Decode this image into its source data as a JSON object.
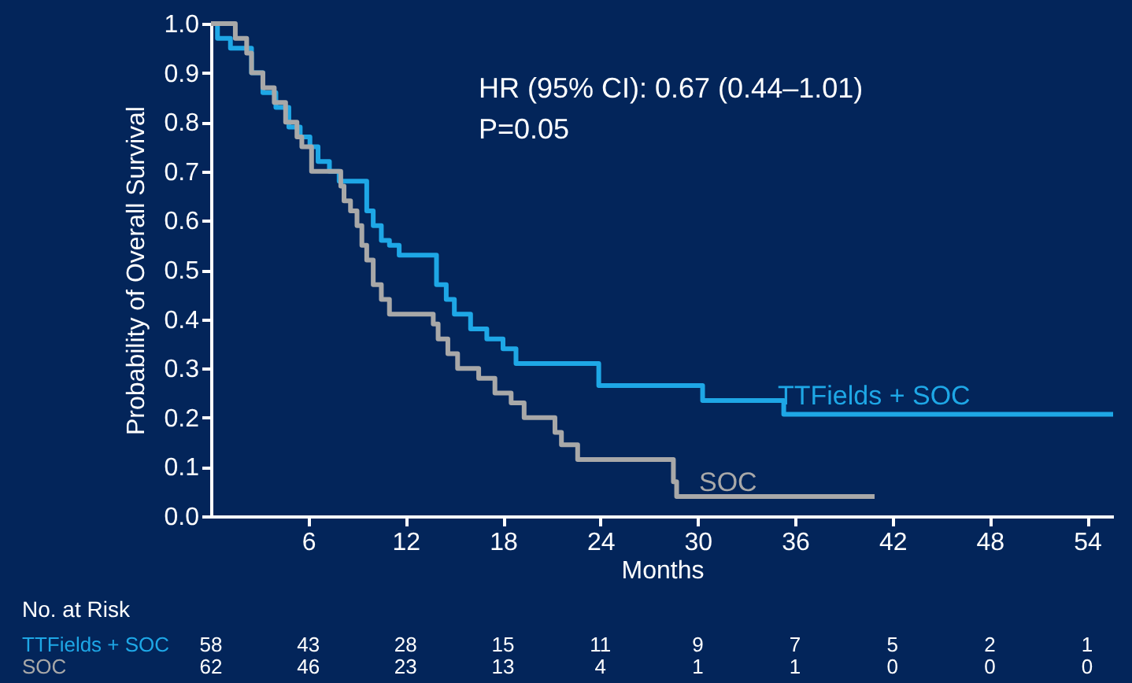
{
  "chart_data": {
    "type": "step",
    "xlabel": "Months",
    "ylabel": "Probability of Overall Survival",
    "xlim": [
      0,
      55.6
    ],
    "ylim": [
      0,
      1
    ],
    "xticks": [
      6,
      12,
      18,
      24,
      30,
      36,
      42,
      48,
      54
    ],
    "yticks": [
      {
        "value": 0,
        "label": "0.0"
      },
      0.1,
      0.2,
      0.3,
      0.4,
      0.5,
      0.6,
      0.7,
      0.8,
      0.9,
      {
        "value": 1,
        "label": "1.0"
      }
    ],
    "grid": false,
    "series": [
      {
        "name": "TTFields + SOC",
        "color": "#1ea7e6",
        "x": [
          0,
          0.4,
          1.2,
          2.5,
          3.2,
          4.0,
          4.8,
          5.5,
          6.1,
          6.6,
          7.3,
          7.9,
          9.6,
          10.0,
          10.5,
          11.0,
          11.6,
          13.9,
          14.5,
          15.0,
          16.0,
          17.0,
          18.0,
          18.8,
          23.9,
          30.3,
          35.3,
          55.6
        ],
        "values": [
          1.0,
          0.97,
          0.95,
          0.9,
          0.86,
          0.83,
          0.79,
          0.77,
          0.75,
          0.72,
          0.7,
          0.68,
          0.62,
          0.59,
          0.56,
          0.55,
          0.53,
          0.47,
          0.44,
          0.41,
          0.38,
          0.36,
          0.34,
          0.31,
          0.265,
          0.235,
          0.207,
          0.207
        ]
      },
      {
        "name": "SOC",
        "color": "#a8a8a8",
        "x": [
          0,
          1.5,
          2.2,
          2.5,
          3.2,
          3.9,
          4.6,
          5.3,
          5.6,
          6.2,
          8.0,
          8.2,
          8.6,
          9.0,
          9.3,
          9.6,
          10.0,
          10.5,
          11.0,
          13.7,
          14.0,
          14.6,
          15.2,
          16.5,
          17.5,
          18.5,
          19.3,
          19.7,
          21.2,
          21.6,
          22.6,
          28.5,
          28.7,
          40.9
        ],
        "values": [
          1.0,
          0.97,
          0.94,
          0.9,
          0.87,
          0.84,
          0.8,
          0.77,
          0.75,
          0.7,
          0.67,
          0.64,
          0.62,
          0.59,
          0.55,
          0.52,
          0.47,
          0.44,
          0.41,
          0.39,
          0.36,
          0.33,
          0.3,
          0.28,
          0.25,
          0.23,
          0.2,
          0.2,
          0.17,
          0.145,
          0.115,
          0.07,
          0.04,
          0.04
        ]
      }
    ],
    "annotations": [
      "HR (95% CI): 0.67 (0.44–1.01)",
      "P=0.05",
      "No. at Risk",
      "TTFields + SOC",
      "SOC",
      "58",
      "43",
      "28",
      "15",
      "11",
      "9",
      "7",
      "5",
      "2",
      "1",
      "62",
      "46",
      "23",
      "13",
      "4",
      "1",
      "1",
      "0",
      "0",
      "0"
    ]
  }
}
